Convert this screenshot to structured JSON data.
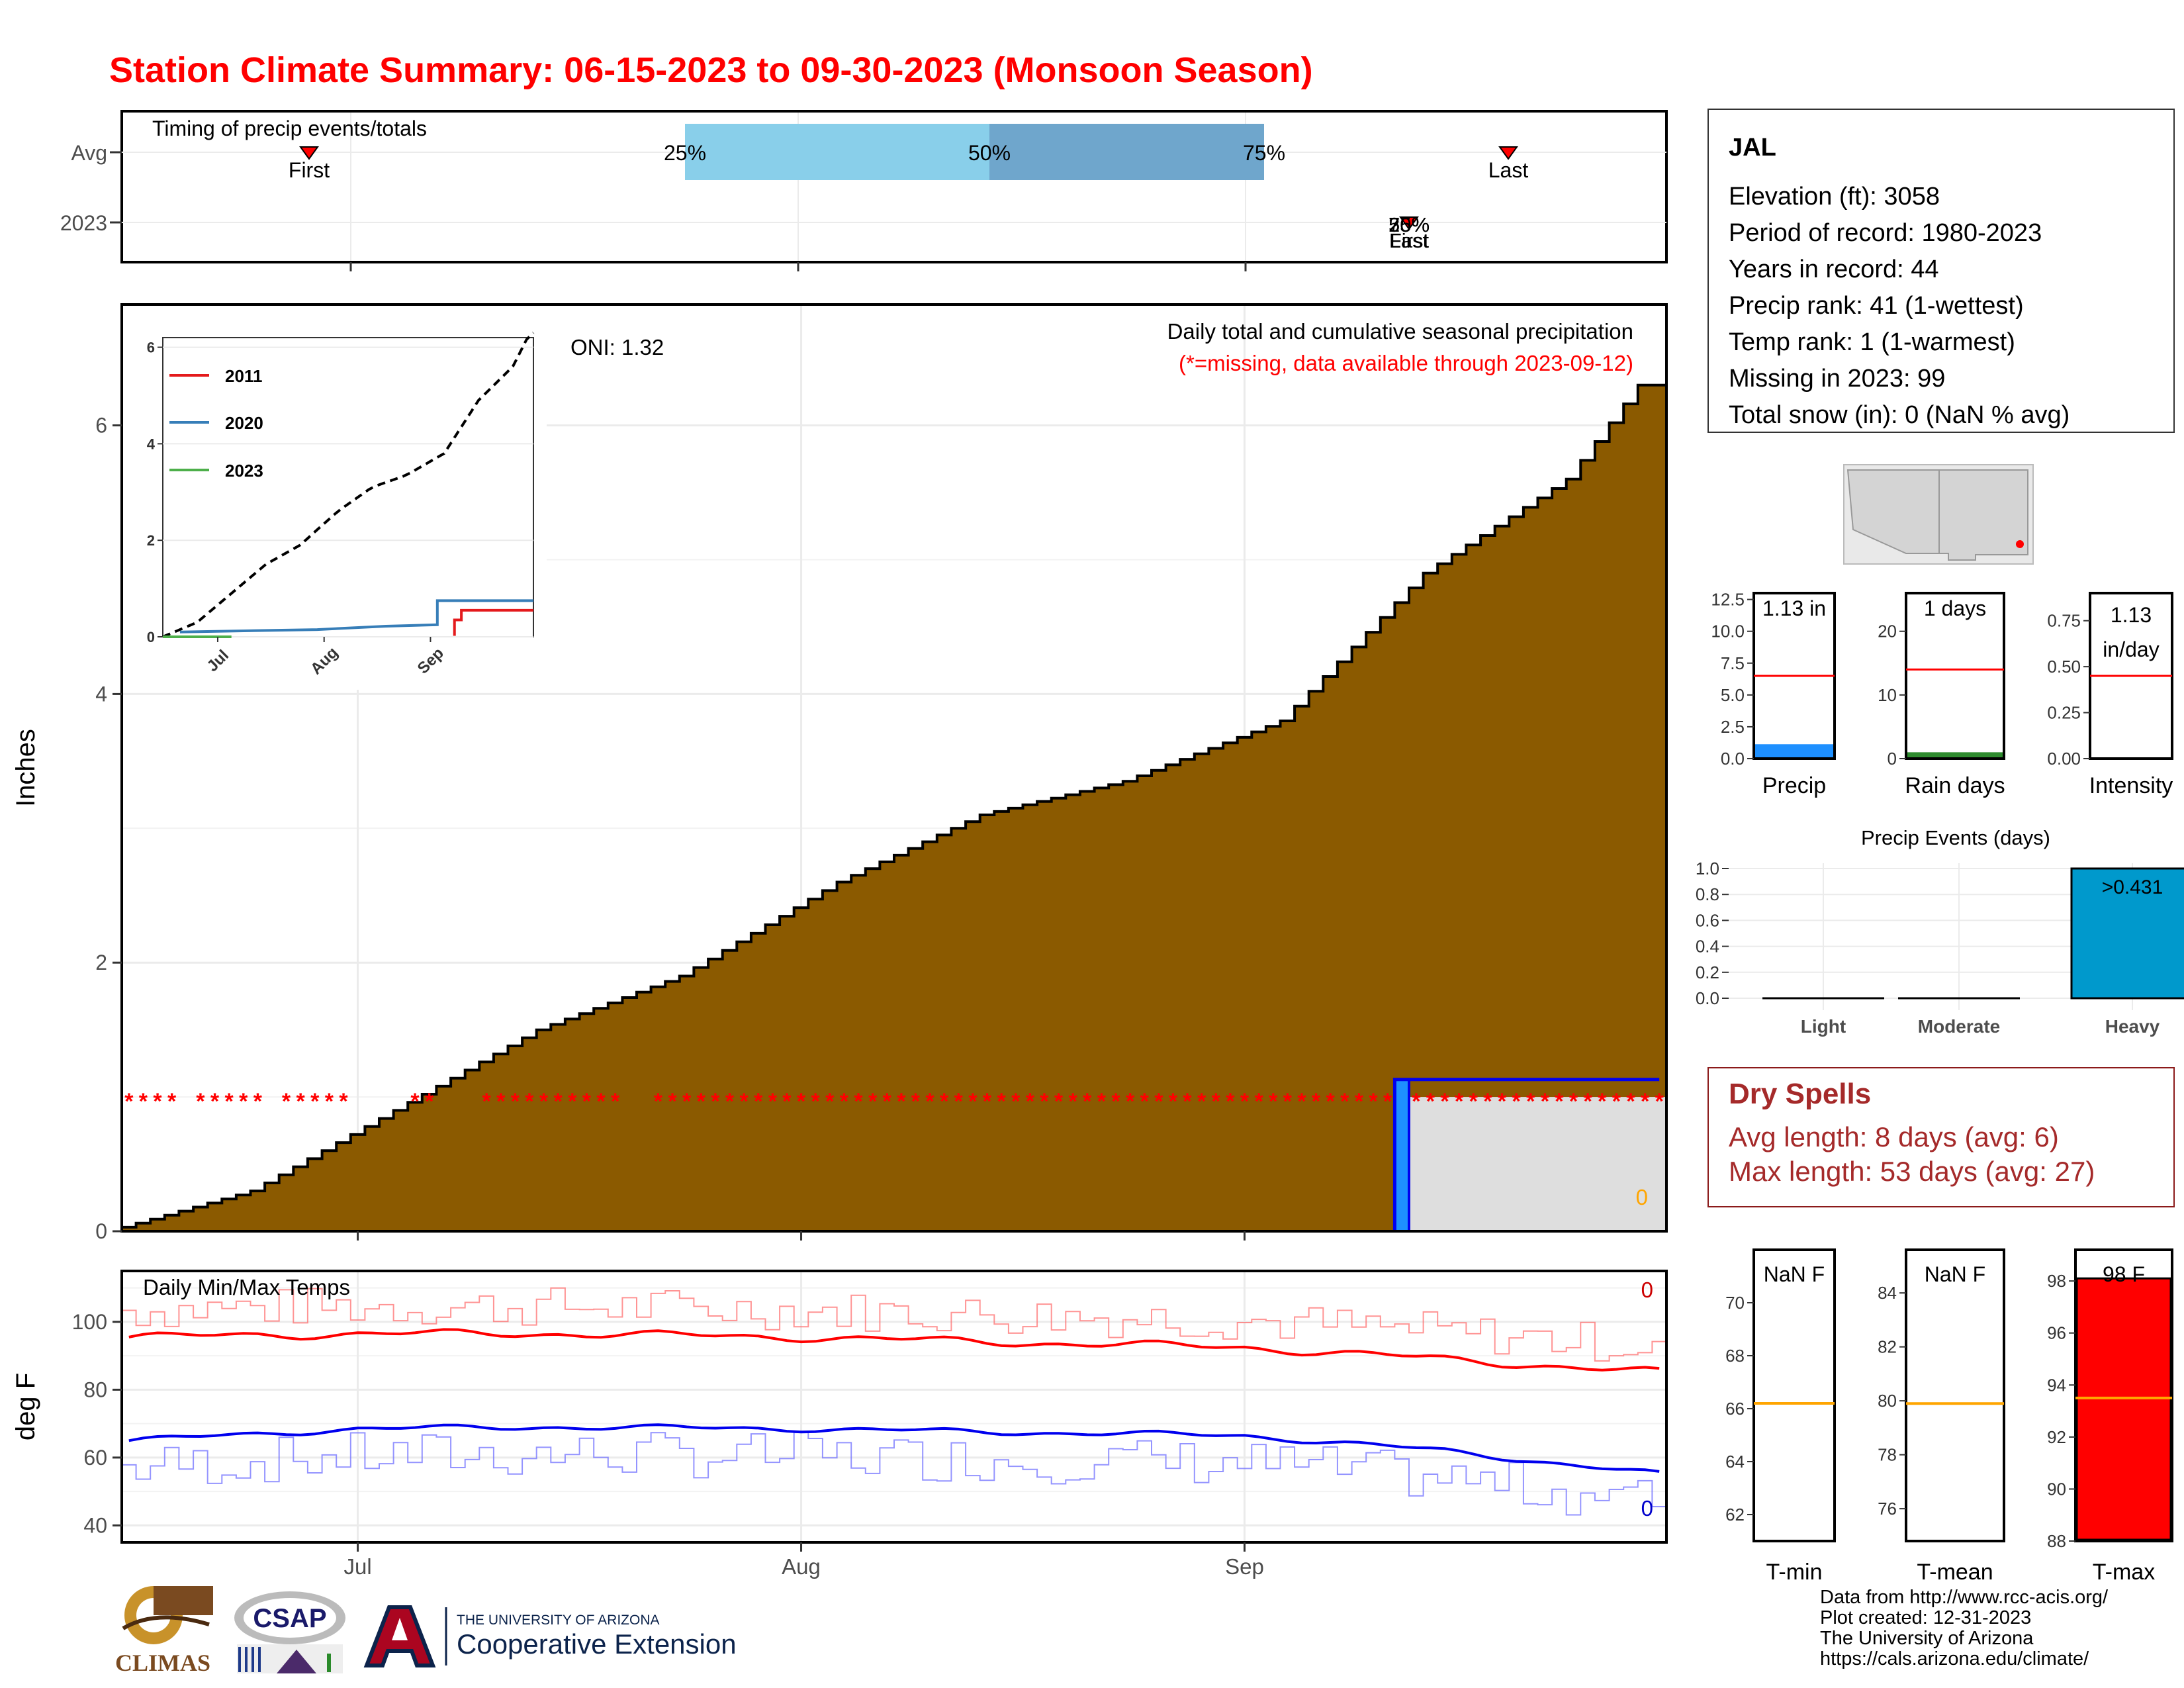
{
  "title": "Station Climate Summary: 06-15-2023 to 09-30-2023 (Monsoon Season)",
  "timing": {
    "label": "Timing of precip events/totals",
    "rows": [
      "Avg",
      "2023"
    ],
    "avg_first_label": "First",
    "avg_last_label": "Last",
    "p25": "25%",
    "p50": "50%",
    "p75": "75%",
    "y2023_labels": [
      "First",
      "Last",
      "25%",
      "50%",
      "75%"
    ],
    "avg_first_day": 0.17,
    "avg_last_day": 0.91,
    "p25_day": 0.38,
    "p50_day": 0.56,
    "p75_day": 0.74,
    "y2023_day": 0.8
  },
  "precip": {
    "ylabel": "Inches",
    "note": "Daily total and cumulative seasonal precipitation",
    "missing_note": "(*=missing, data available through 2023-09-12)",
    "oni": "ONI: 1.32",
    "zero_label": "0",
    "yticks": [
      "0",
      "2",
      "4",
      "6"
    ],
    "xticks": [
      "Jul",
      "Aug",
      "Sep"
    ],
    "colors": {
      "avg_fill": "#8B5A00",
      "obs_fill": "#1E90FF",
      "missing": "#FF0000"
    }
  },
  "inset": {
    "legend": [
      "2011",
      "2020",
      "2023"
    ],
    "colors": [
      "#e41a1c",
      "#377eb8",
      "#4daf4a"
    ],
    "yticks": [
      "0",
      "2",
      "4",
      "6"
    ],
    "xticks": [
      "Jul",
      "Aug",
      "Sep"
    ]
  },
  "temps": {
    "label": "Daily Min/Max Temps",
    "ylabel": "deg F",
    "yticks": [
      "40",
      "60",
      "80",
      "100"
    ],
    "max_count": "0",
    "min_count": "0"
  },
  "station": {
    "name": "JAL",
    "lines": [
      "Elevation (ft): 3058",
      "Period of record: 1980-2023",
      "Years in record: 44",
      "Precip rank: 41 (1-wettest)",
      "Temp rank: 1 (1-warmest)",
      "Missing in 2023: 99",
      "Total snow (in): 0 (NaN % avg)"
    ]
  },
  "bars": {
    "precip": {
      "label": "Precip",
      "value": "1.13 in",
      "yticks": [
        "0.0",
        "2.5",
        "5.0",
        "7.5",
        "10.0",
        "12.5"
      ],
      "obs": 1.13,
      "avg": 6.5,
      "max": 13
    },
    "rain_days": {
      "label": "Rain days",
      "value": "1 days",
      "yticks": [
        "0",
        "10",
        "20"
      ],
      "obs": 1,
      "avg": 14,
      "max": 26
    },
    "intensity": {
      "label": "Intensity",
      "value_line1": "1.13",
      "value_line2": "in/day",
      "yticks": [
        "0.00",
        "0.25",
        "0.50",
        "0.75"
      ],
      "obs": 1.13,
      "avg": 0.45,
      "max": 0.9
    }
  },
  "events": {
    "title": "Precip Events (days)",
    "categories": [
      "Light",
      "Moderate",
      "Heavy"
    ],
    "values": [
      0,
      0,
      1
    ],
    "heavy_label": ">0.431",
    "yticks": [
      "0.0",
      "0.2",
      "0.4",
      "0.6",
      "0.8",
      "1.0"
    ]
  },
  "dry_spells": {
    "title": "Dry Spells",
    "avg_line": "Avg length: 8 days (avg: 6)",
    "max_line": "Max length: 53 days (avg: 27)"
  },
  "temp_bars": {
    "tmin": {
      "label": "T-min",
      "value": "NaN F",
      "yticks": [
        "62",
        "64",
        "66",
        "68",
        "70"
      ],
      "avg": 66.2
    },
    "tmean": {
      "label": "T-mean",
      "value": "NaN F",
      "yticks": [
        "76",
        "78",
        "80",
        "82",
        "84"
      ],
      "avg": 79.9
    },
    "tmax": {
      "label": "T-max",
      "value": "98 F",
      "yticks": [
        "88",
        "90",
        "92",
        "94",
        "96",
        "98"
      ],
      "obs": 98.1,
      "avg": 93.5
    }
  },
  "logos": {
    "climas": "CLIMAS",
    "csap": "CSAP",
    "ua_line1": "THE UNIVERSITY OF ARIZONA",
    "ua_line2": "Cooperative Extension"
  },
  "credits": [
    "Data from http://www.rcc-acis.org/",
    "Plot created: 12-31-2023",
    "The University of Arizona",
    "https://cals.arizona.edu/climate/"
  ],
  "chart_data": [
    {
      "type": "area",
      "title": "Daily total and cumulative seasonal precipitation",
      "ylabel": "Inches",
      "x_range": [
        "2023-06-15",
        "2023-09-30"
      ],
      "ylim": [
        0,
        6.9
      ],
      "series": [
        {
          "name": "",
          "x": [
            "2023-06-15",
            "2023-06-25",
            "2023-07-05",
            "2023-07-15",
            "2023-07-25",
            "2023-08-05",
            "2023-08-15",
            "2023-08-25",
            "2023-09-05",
            "2023-09-15",
            "2023-09-25",
            "2023-09-30"
          ],
          "values": [
            0.0,
            0.3,
            0.9,
            1.5,
            1.9,
            2.6,
            3.1,
            3.35,
            3.8,
            4.9,
            5.6,
            6.3
          ]
        },
        {
          "name": "",
          "x": [
            "2023-09-12",
            "2023-09-30"
          ],
          "values": [
            1.13,
            1.13
          ]
        }
      ]
    },
    {
      "type": "line",
      "title": "Daily Min/Max Temps",
      "ylabel": "deg F",
      "x_range": [
        "2023-06-15",
        "2023-09-30"
      ],
      "ylim": [
        35,
        115
      ],
      "series": [
        {
          "name": "",
          "x": [
            "2023-06-15",
            "2023-07-01",
            "2023-07-15",
            "2023-08-01",
            "2023-08-15",
            "2023-09-01",
            "2023-09-15",
            "2023-09-30"
          ],
          "values": [
            95.5,
            96.5,
            96.5,
            95.5,
            94,
            92.5,
            89,
            85
          ]
        },
        {
          "name": "",
          "x": [
            "2023-06-15",
            "2023-07-01",
            "2023-07-15",
            "2023-08-01",
            "2023-08-15",
            "2023-09-01",
            "2023-09-15",
            "2023-09-30"
          ],
          "values": [
            65,
            68.5,
            69,
            68.5,
            67.5,
            66.5,
            62,
            55
          ]
        }
      ]
    }
  ]
}
